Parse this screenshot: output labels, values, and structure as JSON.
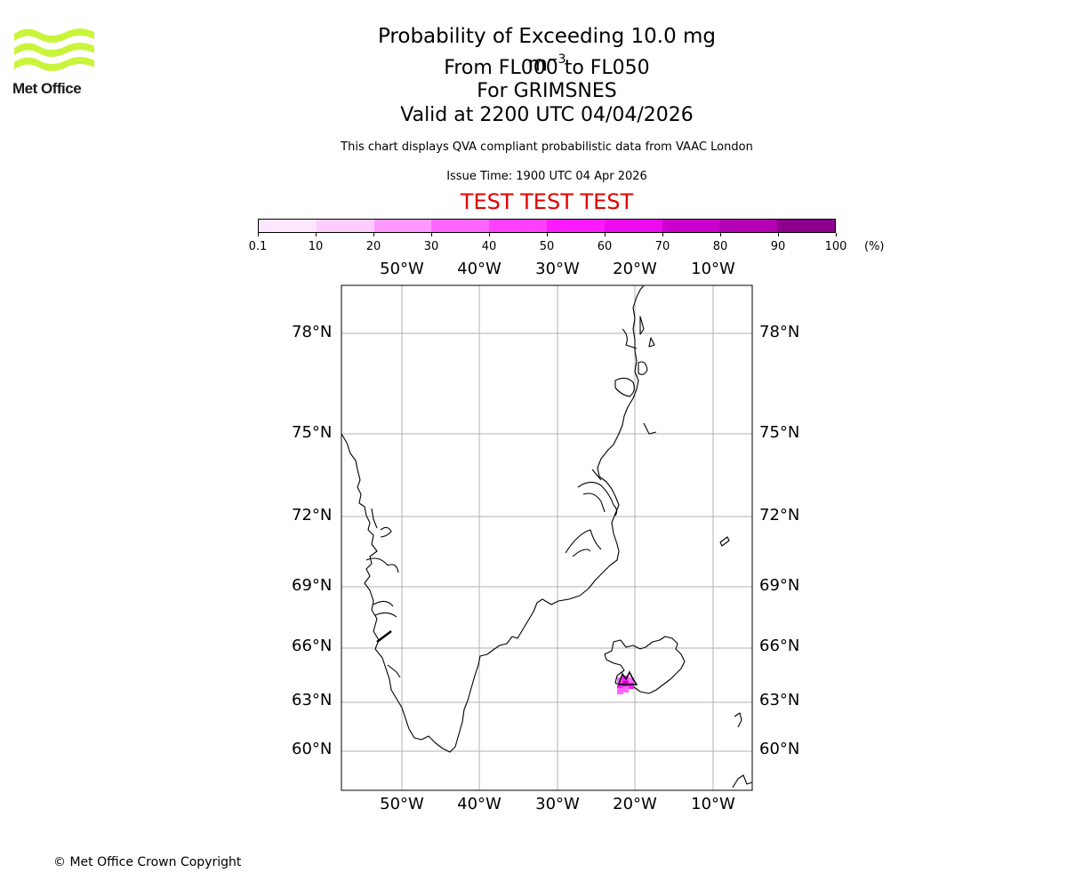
{
  "logo": {
    "text": "Met Office",
    "color": "#c8f53a"
  },
  "title": {
    "line1_main": "Probability of Exceeding 10.0 mg m",
    "line1_sup": "−3",
    "line2": "From FL000 to FL050",
    "line3": "For GRIMSNES",
    "line4": "Valid at 2200 UTC 04/04/2026"
  },
  "subtitle": "This chart displays QVA compliant probabilistic data from VAAC London",
  "issue_time": "Issue Time: 1900 UTC 04 Apr 2026",
  "test_banner": "TEST TEST TEST",
  "colorbar": {
    "ticks": [
      "0.1",
      "10",
      "20",
      "30",
      "40",
      "50",
      "60",
      "70",
      "80",
      "90",
      "100"
    ],
    "unit": "(%)",
    "colors": [
      "#ffe6ff",
      "#ffccff",
      "#ff99ff",
      "#ff66ff",
      "#ff40ff",
      "#ff1aff",
      "#ee0bee",
      "#cc00cc",
      "#b200b2",
      "#8c008c",
      "#5e005e"
    ]
  },
  "map": {
    "lon_labels": [
      "50°W",
      "40°W",
      "30°W",
      "20°W",
      "10°W"
    ],
    "lat_labels": [
      "78°N",
      "75°N",
      "72°N",
      "69°N",
      "66°N",
      "63°N",
      "60°N"
    ],
    "ash_colors": {
      "light": "#ff66ff",
      "mid": "#ff1aff",
      "dark": "#cc00cc"
    }
  },
  "copyright": "© Met Office Crown Copyright"
}
